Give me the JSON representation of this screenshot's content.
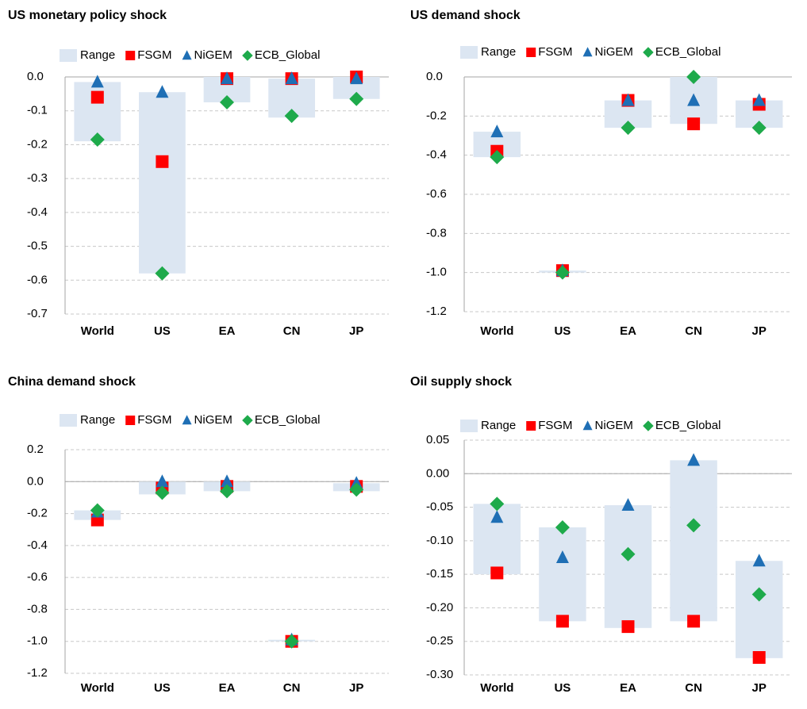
{
  "chart_data": [
    {
      "type": "range",
      "title": "US monetary policy shock",
      "categories": [
        "World",
        "US",
        "EA",
        "CN",
        "JP"
      ],
      "series": [
        {
          "name": "Range",
          "color": "#dce6f2",
          "low": [
            -0.19,
            -0.58,
            -0.075,
            -0.12,
            -0.065
          ],
          "high": [
            -0.015,
            -0.045,
            0,
            -0.005,
            0
          ]
        },
        {
          "name": "FSGM",
          "color": "#ff0000",
          "marker": "square",
          "values": [
            -0.06,
            -0.25,
            -0.005,
            -0.005,
            0
          ]
        },
        {
          "name": "NiGEM",
          "color": "#1f6fb5",
          "marker": "triangle",
          "values": [
            -0.015,
            -0.045,
            -0.005,
            -0.005,
            -0.005
          ]
        },
        {
          "name": "ECB_Global",
          "color": "#1eaa4b",
          "marker": "diamond",
          "values": [
            -0.185,
            -0.58,
            -0.075,
            -0.115,
            -0.065
          ]
        }
      ],
      "ylim": [
        -0.7,
        0
      ],
      "yticks": [
        {
          "value": 0,
          "label": "0.0"
        },
        {
          "value": -0.1,
          "label": "-0.1"
        },
        {
          "value": -0.2,
          "label": "-0.2"
        },
        {
          "value": -0.3,
          "label": "-0.3"
        },
        {
          "value": -0.4,
          "label": "-0.4"
        },
        {
          "value": -0.5,
          "label": "-0.5"
        },
        {
          "value": -0.6,
          "label": "-0.6"
        },
        {
          "value": -0.7,
          "label": "-0.7"
        }
      ],
      "grid": true
    },
    {
      "type": "range",
      "title": "US demand shock",
      "categories": [
        "World",
        "US",
        "EA",
        "CN",
        "JP"
      ],
      "series": [
        {
          "name": "Range",
          "color": "#dce6f2",
          "low": [
            -0.41,
            -1.0,
            -0.26,
            -0.24,
            -0.26
          ],
          "high": [
            -0.28,
            -0.99,
            -0.12,
            0,
            -0.12
          ]
        },
        {
          "name": "FSGM",
          "color": "#ff0000",
          "marker": "square",
          "values": [
            -0.38,
            -0.99,
            -0.12,
            -0.24,
            -0.14
          ]
        },
        {
          "name": "NiGEM",
          "color": "#1f6fb5",
          "marker": "triangle",
          "values": [
            -0.28,
            -0.99,
            -0.12,
            -0.12,
            -0.12
          ]
        },
        {
          "name": "ECB_Global",
          "color": "#1eaa4b",
          "marker": "diamond",
          "values": [
            -0.41,
            -1.0,
            -0.26,
            0,
            -0.26
          ]
        }
      ],
      "ylim": [
        -1.2,
        0
      ],
      "yticks": [
        {
          "value": 0,
          "label": "0.0"
        },
        {
          "value": -0.2,
          "label": "-0.2"
        },
        {
          "value": -0.4,
          "label": "-0.4"
        },
        {
          "value": -0.6,
          "label": "-0.6"
        },
        {
          "value": -0.8,
          "label": "-0.8"
        },
        {
          "value": -1.0,
          "label": "-1.0"
        },
        {
          "value": -1.2,
          "label": "-1.2"
        }
      ],
      "grid": true
    },
    {
      "type": "range",
      "title": "China demand shock",
      "categories": [
        "World",
        "US",
        "EA",
        "CN",
        "JP"
      ],
      "series": [
        {
          "name": "Range",
          "color": "#dce6f2",
          "low": [
            -0.24,
            -0.08,
            -0.06,
            -1.0,
            -0.06
          ],
          "high": [
            -0.18,
            0,
            0,
            -0.99,
            -0.01
          ]
        },
        {
          "name": "FSGM",
          "color": "#ff0000",
          "marker": "square",
          "values": [
            -0.24,
            -0.04,
            -0.03,
            -1.0,
            -0.03
          ]
        },
        {
          "name": "NiGEM",
          "color": "#1f6fb5",
          "marker": "triangle",
          "values": [
            -0.19,
            0,
            0,
            -0.99,
            -0.01
          ]
        },
        {
          "name": "ECB_Global",
          "color": "#1eaa4b",
          "marker": "diamond",
          "values": [
            -0.18,
            -0.07,
            -0.06,
            -1.0,
            -0.05
          ]
        }
      ],
      "ylim": [
        -1.2,
        0.2
      ],
      "yticks": [
        {
          "value": 0.2,
          "label": "0.2"
        },
        {
          "value": 0,
          "label": "0.0"
        },
        {
          "value": -0.2,
          "label": "-0.2"
        },
        {
          "value": -0.4,
          "label": "-0.4"
        },
        {
          "value": -0.6,
          "label": "-0.6"
        },
        {
          "value": -0.8,
          "label": "-0.8"
        },
        {
          "value": -1.0,
          "label": "-1.0"
        },
        {
          "value": -1.2,
          "label": "-1.2"
        }
      ],
      "grid": true
    },
    {
      "type": "range",
      "title": "Oil supply shock",
      "categories": [
        "World",
        "US",
        "EA",
        "CN",
        "JP"
      ],
      "series": [
        {
          "name": "Range",
          "color": "#dce6f2",
          "low": [
            -0.15,
            -0.22,
            -0.23,
            -0.22,
            -0.275
          ],
          "high": [
            -0.045,
            -0.08,
            -0.047,
            0.02,
            -0.13
          ]
        },
        {
          "name": "FSGM",
          "color": "#ff0000",
          "marker": "square",
          "values": [
            -0.148,
            -0.22,
            -0.228,
            -0.22,
            -0.274
          ]
        },
        {
          "name": "NiGEM",
          "color": "#1f6fb5",
          "marker": "triangle",
          "values": [
            -0.065,
            -0.125,
            -0.047,
            0.02,
            -0.13
          ]
        },
        {
          "name": "ECB_Global",
          "color": "#1eaa4b",
          "marker": "diamond",
          "values": [
            -0.045,
            -0.08,
            -0.12,
            -0.077,
            -0.18
          ]
        }
      ],
      "ylim": [
        -0.3,
        0.05
      ],
      "yticks": [
        {
          "value": 0.05,
          "label": "0.05"
        },
        {
          "value": 0,
          "label": "0.00"
        },
        {
          "value": -0.05,
          "label": "-0.05"
        },
        {
          "value": -0.1,
          "label": "-0.10"
        },
        {
          "value": -0.15,
          "label": "-0.15"
        },
        {
          "value": -0.2,
          "label": "-0.20"
        },
        {
          "value": -0.25,
          "label": "-0.25"
        },
        {
          "value": -0.3,
          "label": "-0.30"
        }
      ],
      "grid": true
    }
  ]
}
